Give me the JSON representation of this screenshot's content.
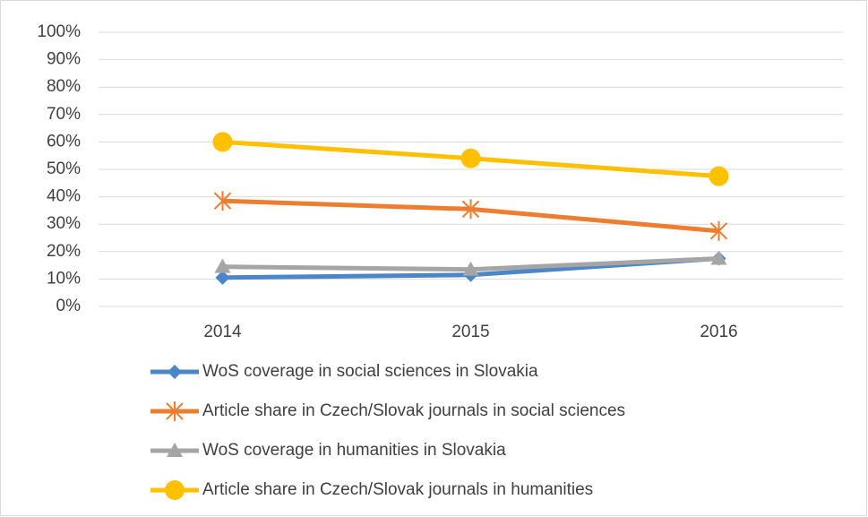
{
  "chart_data": {
    "type": "line",
    "categories": [
      "2014",
      "2015",
      "2016"
    ],
    "ylim": [
      0,
      100
    ],
    "yticks": [
      {
        "value": 0,
        "label": "0%"
      },
      {
        "value": 10,
        "label": "10%"
      },
      {
        "value": 20,
        "label": "20%"
      },
      {
        "value": 30,
        "label": "30%"
      },
      {
        "value": 40,
        "label": "40%"
      },
      {
        "value": 50,
        "label": "50%"
      },
      {
        "value": 60,
        "label": "60%"
      },
      {
        "value": 70,
        "label": "70%"
      },
      {
        "value": 80,
        "label": "80%"
      },
      {
        "value": 90,
        "label": "90%"
      },
      {
        "value": 100,
        "label": "100%"
      }
    ],
    "grid": true,
    "legend": "bottom",
    "series": [
      {
        "name": "WoS coverage in social sciences in Slovakia",
        "color": "#4a86c8",
        "marker": "diamond",
        "values": [
          10.5,
          11.5,
          17.5
        ]
      },
      {
        "name": "Article share in Czech/Slovak journals in social sciences",
        "color": "#ed7d31",
        "marker": "asterisk",
        "values": [
          38.5,
          35.5,
          27.5
        ]
      },
      {
        "name": "WoS coverage in humanities in Slovakia",
        "color": "#a5a5a5",
        "marker": "triangle",
        "values": [
          14.5,
          13.5,
          17.5
        ]
      },
      {
        "name": "Article share in Czech/Slovak journals in humanities",
        "color": "#ffc000",
        "marker": "circle",
        "values": [
          60,
          54,
          47.5
        ]
      }
    ]
  }
}
